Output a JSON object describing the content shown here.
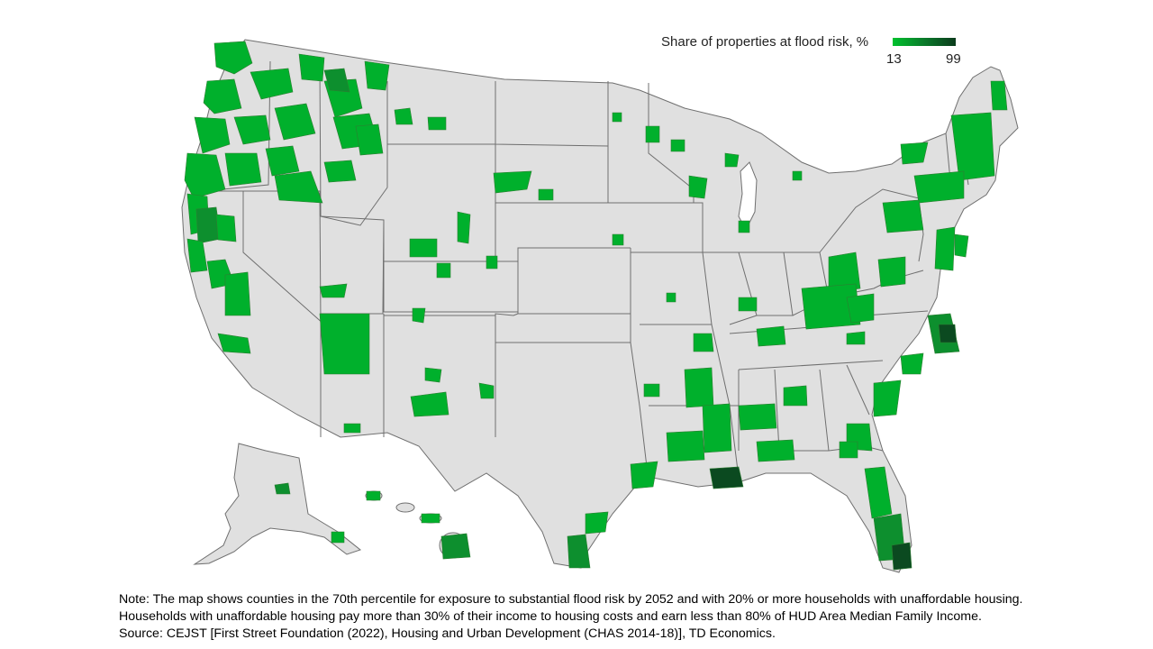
{
  "legend": {
    "title": "Share of properties at flood risk, %",
    "min_label": "13",
    "max_label": "99",
    "gradient_colors": [
      "#00c12e",
      "#0a7a2a",
      "#0b3b1c"
    ]
  },
  "notes": {
    "line1": "Note: The map shows counties in the 70th percentile for exposure to substantial flood risk by 2052 and with 20% or more households with unaffordable housing.",
    "line2": "Households with unaffordable housing pay more than 30% of their income to housing costs and earn less than 80% of HUD Area Median Family Income.",
    "line3": "Source: CEJST [First Street Foundation (2022), Housing and Urban Development (CHAS 2014-18)], TD Economics."
  },
  "colors": {
    "land": "#e0e0e0",
    "border": "#6f6f6f",
    "low_risk": "#00b02c",
    "mid_risk": "#0d8f2e",
    "high_risk": "#0b4a20"
  }
}
